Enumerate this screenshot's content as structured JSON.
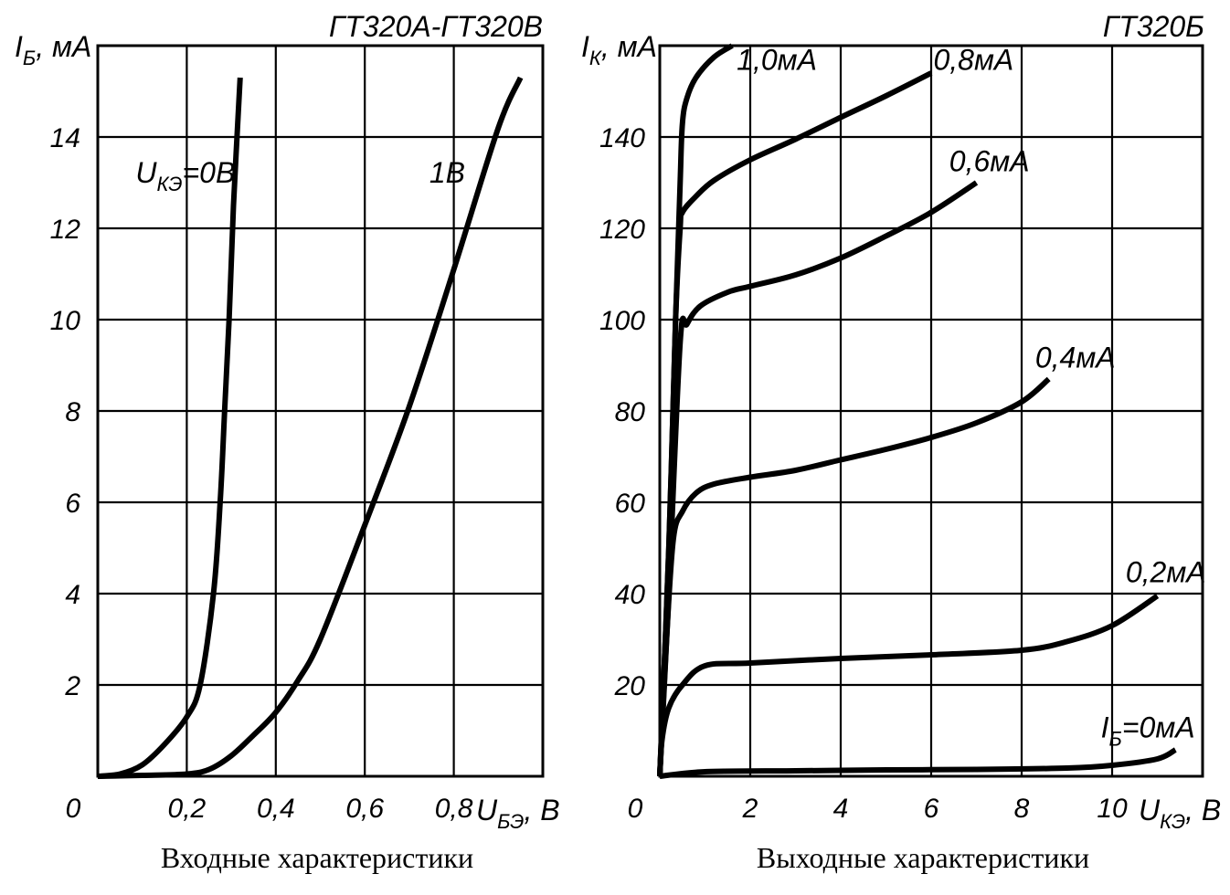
{
  "chart_data": [
    {
      "type": "line",
      "title": "ГТ320А-ГТ320В",
      "caption": "Входные характеристики",
      "ylabel": "I",
      "ylabel_sub": "Б",
      "ylabel_unit": ", мА",
      "xlabel": "U",
      "xlabel_sub": "БЭ",
      "xlabel_unit": ", В",
      "origin_label": "0",
      "xlim": [
        0,
        1.0
      ],
      "ylim": [
        0,
        16
      ],
      "grid": true,
      "x_ticks": [
        {
          "value": 0.2,
          "label": "0,2"
        },
        {
          "value": 0.4,
          "label": "0,4"
        },
        {
          "value": 0.6,
          "label": "0,6"
        },
        {
          "value": 0.8,
          "label": "0,8"
        }
      ],
      "y_ticks": [
        {
          "value": 2,
          "label": "2"
        },
        {
          "value": 4,
          "label": "4"
        },
        {
          "value": 6,
          "label": "6"
        },
        {
          "value": 8,
          "label": "8"
        },
        {
          "value": 10,
          "label": "10"
        },
        {
          "value": 12,
          "label": "12"
        },
        {
          "value": 14,
          "label": "14"
        }
      ],
      "series": [
        {
          "label": "U",
          "label_sub": "КЭ",
          "label_rest": "=0В",
          "label_at": [
            0.085,
            13.0
          ],
          "points": [
            [
              0,
              0
            ],
            [
              0.05,
              0.05
            ],
            [
              0.1,
              0.25
            ],
            [
              0.15,
              0.7
            ],
            [
              0.2,
              1.3
            ],
            [
              0.23,
              2.0
            ],
            [
              0.26,
              4.0
            ],
            [
              0.275,
              6.0
            ],
            [
              0.285,
              8.0
            ],
            [
              0.295,
              10.0
            ],
            [
              0.305,
              12.5
            ],
            [
              0.32,
              15.3
            ]
          ]
        },
        {
          "label": "1В",
          "label_at": [
            0.745,
            13.0
          ],
          "points": [
            [
              0,
              0
            ],
            [
              0.1,
              0.02
            ],
            [
              0.2,
              0.05
            ],
            [
              0.25,
              0.15
            ],
            [
              0.3,
              0.45
            ],
            [
              0.35,
              0.9
            ],
            [
              0.4,
              1.4
            ],
            [
              0.45,
              2.1
            ],
            [
              0.5,
              3.0
            ],
            [
              0.6,
              5.5
            ],
            [
              0.7,
              8.1
            ],
            [
              0.8,
              11.1
            ],
            [
              0.9,
              14.2
            ],
            [
              0.95,
              15.3
            ]
          ]
        }
      ]
    },
    {
      "type": "line",
      "title": "ГТ320Б",
      "caption": "Выходные характеристики",
      "ylabel": "I",
      "ylabel_sub": "К",
      "ylabel_unit": ", мА",
      "xlabel": "U",
      "xlabel_sub": "КЭ",
      "xlabel_unit": ", В",
      "origin_label": "0",
      "xlim": [
        0,
        12
      ],
      "ylim": [
        0,
        160
      ],
      "grid": true,
      "x_ticks": [
        {
          "value": 2,
          "label": "2"
        },
        {
          "value": 4,
          "label": "4"
        },
        {
          "value": 6,
          "label": "6"
        },
        {
          "value": 8,
          "label": "8"
        },
        {
          "value": 10,
          "label": "10"
        }
      ],
      "y_ticks": [
        {
          "value": 20,
          "label": "20"
        },
        {
          "value": 40,
          "label": "40"
        },
        {
          "value": 60,
          "label": "60"
        },
        {
          "value": 80,
          "label": "80"
        },
        {
          "value": 100,
          "label": "100"
        },
        {
          "value": 120,
          "label": "120"
        },
        {
          "value": 140,
          "label": "140"
        }
      ],
      "series": [
        {
          "label": "I",
          "label_sub": "Б",
          "label_rest": "=0мА",
          "label_at": [
            9.75,
            8.5
          ],
          "points": [
            [
              0,
              0
            ],
            [
              1,
              1
            ],
            [
              3,
              1.2
            ],
            [
              5,
              1.4
            ],
            [
              7,
              1.5
            ],
            [
              9,
              1.8
            ],
            [
              10,
              2.4
            ],
            [
              11,
              3.8
            ],
            [
              11.4,
              5.8
            ]
          ]
        },
        {
          "label": "0,2мА",
          "label_at": [
            10.3,
            42.5
          ],
          "points": [
            [
              0,
              0
            ],
            [
              0.05,
              8
            ],
            [
              0.2,
              15
            ],
            [
              0.5,
              20
            ],
            [
              1.0,
              24.2
            ],
            [
              2,
              24.8
            ],
            [
              4,
              25.8
            ],
            [
              6,
              26.6
            ],
            [
              8,
              27.6
            ],
            [
              9,
              29.5
            ],
            [
              10,
              33
            ],
            [
              11,
              39.5
            ]
          ]
        },
        {
          "label": "0,4мА",
          "label_at": [
            8.3,
            89.5
          ],
          "points": [
            [
              0,
              0
            ],
            [
              0.15,
              30
            ],
            [
              0.3,
              52
            ],
            [
              0.5,
              58
            ],
            [
              0.8,
              62
            ],
            [
              1.2,
              64
            ],
            [
              2,
              65.5
            ],
            [
              3,
              67
            ],
            [
              4,
              69.3
            ],
            [
              5,
              71.6
            ],
            [
              6,
              74.2
            ],
            [
              7,
              77.4
            ],
            [
              8,
              82
            ],
            [
              8.6,
              87
            ]
          ]
        },
        {
          "label": "0,6мА",
          "label_at": [
            6.4,
            132.5
          ],
          "points": [
            [
              0,
              0
            ],
            [
              0.2,
              40
            ],
            [
              0.45,
              95
            ],
            [
              0.6,
              99
            ],
            [
              0.9,
              103
            ],
            [
              1.5,
              106
            ],
            [
              2,
              107.3
            ],
            [
              3,
              109.8
            ],
            [
              4,
              113.5
            ],
            [
              5,
              118.3
            ],
            [
              6,
              123.5
            ],
            [
              7,
              130
            ]
          ]
        },
        {
          "label": "0,8мА",
          "label_at": [
            6.05,
            154.7
          ],
          "points": [
            [
              0,
              0
            ],
            [
              0.2,
              50
            ],
            [
              0.35,
              100
            ],
            [
              0.45,
              120
            ],
            [
              0.5,
              123.5
            ],
            [
              0.8,
              127
            ],
            [
              1.2,
              130.5
            ],
            [
              2,
              135
            ],
            [
              3,
              139.5
            ],
            [
              4,
              144.3
            ],
            [
              5,
              149
            ],
            [
              6,
              154
            ]
          ]
        },
        {
          "label": "1,0мА",
          "label_at": [
            1.7,
            154.7
          ],
          "points": [
            [
              0,
              0
            ],
            [
              0.2,
              50
            ],
            [
              0.35,
              100
            ],
            [
              0.45,
              130
            ],
            [
              0.5,
              143
            ],
            [
              0.6,
              148.5
            ],
            [
              0.8,
              153
            ],
            [
              1.2,
              157.5
            ],
            [
              1.6,
              160
            ]
          ]
        }
      ]
    }
  ]
}
